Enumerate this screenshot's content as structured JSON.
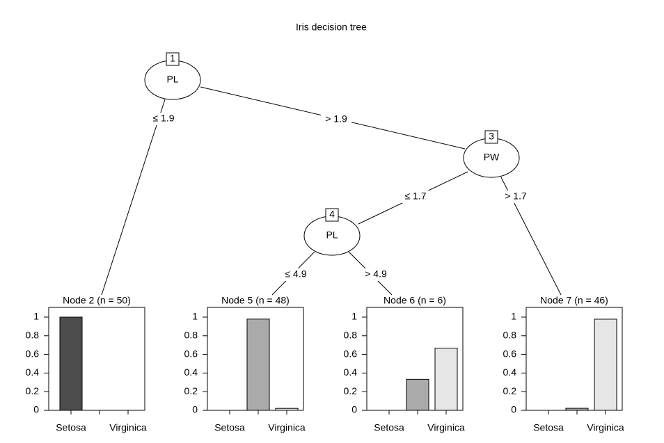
{
  "title": "Iris decision tree",
  "inner_nodes": [
    {
      "id": "1",
      "label": "PL"
    },
    {
      "id": "3",
      "label": "PW"
    },
    {
      "id": "4",
      "label": "PL"
    }
  ],
  "edges": [
    {
      "label": "≤ 1.9"
    },
    {
      "label": "> 1.9"
    },
    {
      "label": "≤ 1.7"
    },
    {
      "label": "> 1.7"
    },
    {
      "label": "≤ 4.9"
    },
    {
      "label": "> 4.9"
    }
  ],
  "categories": [
    "Setosa",
    null,
    "Virginica"
  ],
  "colors": [
    "#4d4d4d",
    "#aaaaaa",
    "#e6e6e6"
  ],
  "ylim": [
    0,
    1
  ],
  "yticks": [
    0,
    0.2,
    0.4,
    0.6,
    0.8,
    1
  ],
  "terminals": [
    {
      "title": "Node 2 (n = 50)",
      "values": [
        1,
        0,
        0
      ]
    },
    {
      "title": "Node 5 (n = 48)",
      "values": [
        0,
        0.979,
        0.021
      ]
    },
    {
      "title": "Node 6 (n = 6)",
      "values": [
        0,
        0.333,
        0.667
      ]
    },
    {
      "title": "Node 7 (n = 46)",
      "values": [
        0,
        0.022,
        0.978
      ]
    }
  ]
}
